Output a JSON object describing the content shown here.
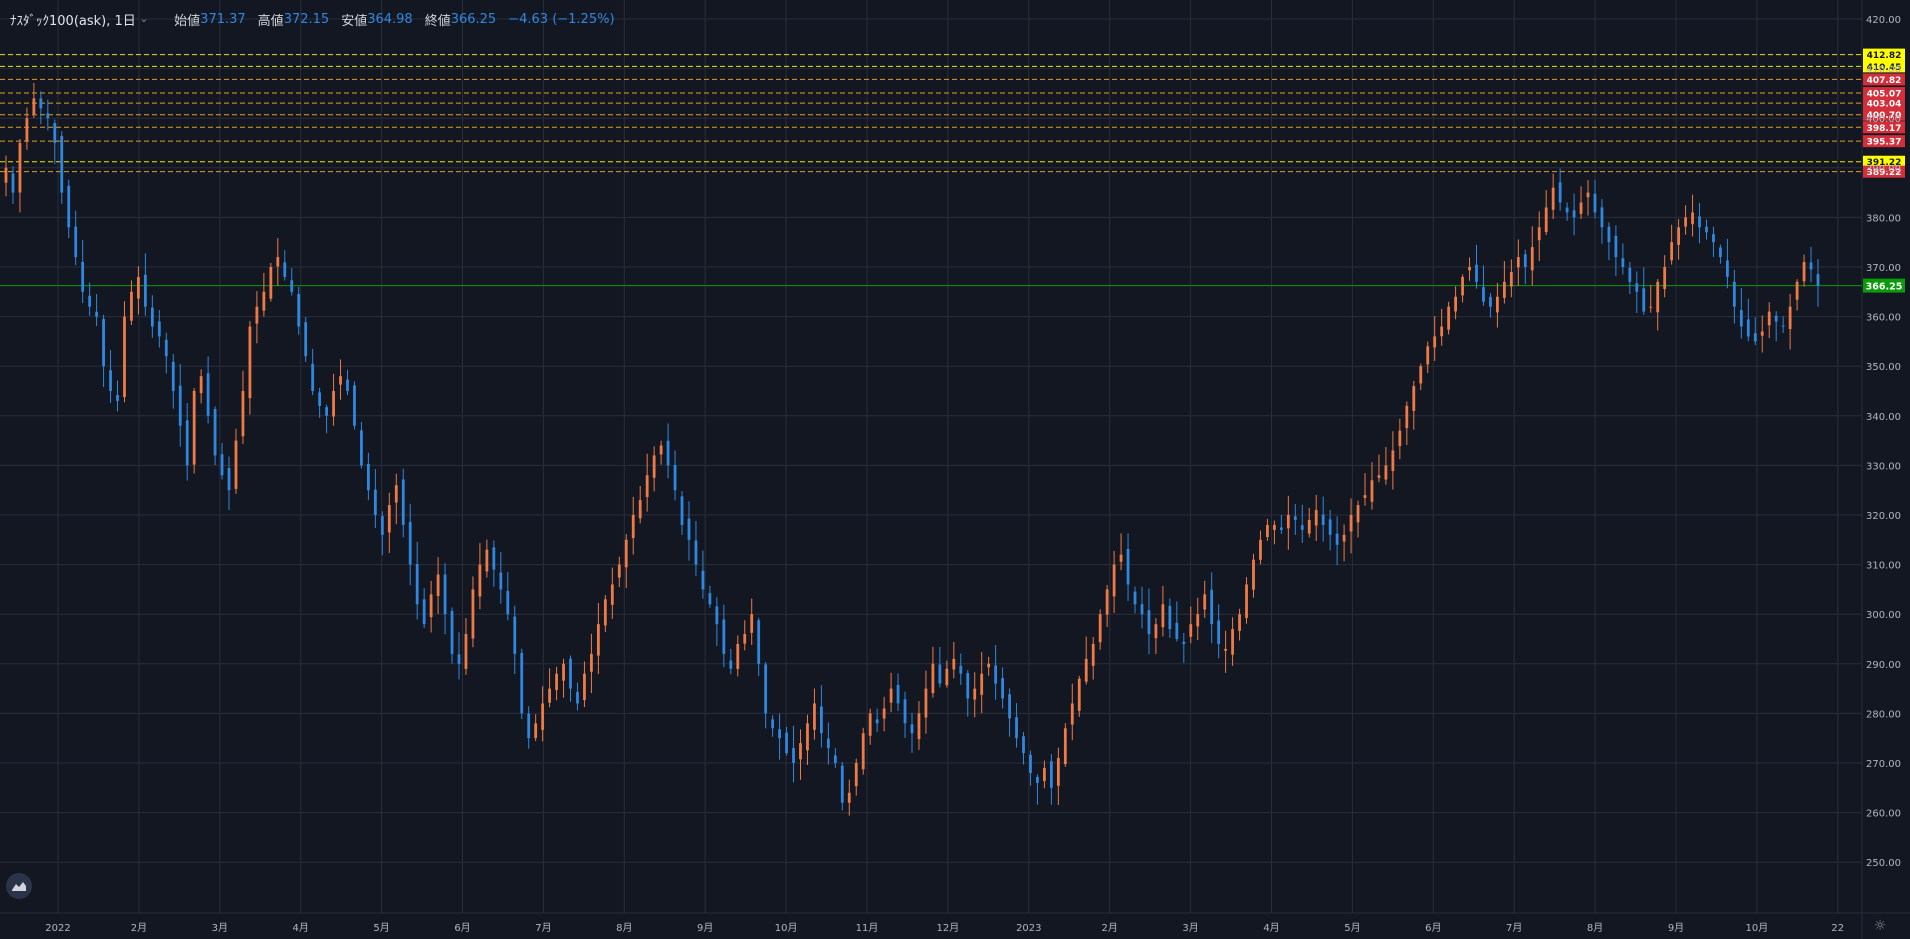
{
  "header": {
    "symbol": "ﾅｽﾀﾞｯｸ100(ask), 1日",
    "open_label": "始値",
    "open": "371.37",
    "high_label": "高値",
    "high": "372.15",
    "low_label": "安値",
    "low": "364.98",
    "close_label": "終値",
    "close": "366.25",
    "change": "−4.63 (−1.25%)"
  },
  "icons": {
    "logo": "tradingview-logo-icon",
    "settings": "gear-icon",
    "dropdown": "chevron-down-icon"
  },
  "colors": {
    "background": "#131722",
    "up": "#ef7a45",
    "down": "#2f87e0",
    "grid": "#2a2e39",
    "last_price": "#0a9a0a"
  },
  "chart_data": {
    "type": "candlestick",
    "title": "ﾅｽﾀﾞｯｸ100(ask), 1日",
    "ylim": [
      243,
      422
    ],
    "y_ticks": [
      "420.00",
      "410.00",
      "400.00",
      "390.00",
      "380.00",
      "370.00",
      "360.00",
      "350.00",
      "340.00",
      "330.00",
      "320.00",
      "310.00",
      "300.00",
      "290.00",
      "280.00",
      "270.00",
      "260.00",
      "250.00"
    ],
    "x_ticks": [
      "2022",
      "2月",
      "3月",
      "4月",
      "5月",
      "6月",
      "7月",
      "8月",
      "9月",
      "10月",
      "11月",
      "12月",
      "2023",
      "2月",
      "3月",
      "4月",
      "5月",
      "6月",
      "7月",
      "8月",
      "9月",
      "10月",
      "22"
    ],
    "last_price": "366.25",
    "horizontal_levels": [
      {
        "value": 412.82,
        "label": "412.82",
        "style": "yellow"
      },
      {
        "value": 410.45,
        "label": "410.45",
        "style": "yellow"
      },
      {
        "value": 407.82,
        "label": "407.82",
        "style": "red"
      },
      {
        "value": 405.07,
        "label": "405.07",
        "style": "red"
      },
      {
        "value": 403.04,
        "label": "403.04",
        "style": "red"
      },
      {
        "value": 400.7,
        "label": "400.70",
        "style": "red"
      },
      {
        "value": 398.17,
        "label": "398.17",
        "style": "red"
      },
      {
        "value": 395.37,
        "label": "395.37",
        "style": "red"
      },
      {
        "value": 391.22,
        "label": "391.22",
        "style": "yellow"
      },
      {
        "value": 389.22,
        "label": "389.22",
        "style": "red"
      }
    ],
    "closes": [
      390,
      385,
      395,
      400,
      404,
      402,
      400,
      395,
      385,
      378,
      372,
      365,
      362,
      360,
      350,
      345,
      343,
      360,
      365,
      368,
      362,
      358,
      356,
      352,
      345,
      338,
      330,
      345,
      348,
      340,
      332,
      328,
      325,
      335,
      345,
      358,
      362,
      365,
      370,
      372,
      368,
      365,
      358,
      352,
      345,
      342,
      340,
      345,
      348,
      345,
      338,
      330,
      325,
      320,
      316,
      322,
      326,
      318,
      310,
      302,
      298,
      304,
      308,
      300,
      292,
      290,
      296,
      305,
      310,
      313,
      309,
      305,
      300,
      292,
      280,
      275,
      278,
      282,
      285,
      288,
      290,
      285,
      282,
      288,
      292,
      298,
      303,
      306,
      310,
      315,
      320,
      323,
      328,
      332,
      334,
      330,
      325,
      318,
      315,
      310,
      305,
      302,
      298,
      292,
      289,
      294,
      296,
      300,
      290,
      280,
      277,
      275,
      272,
      270,
      274,
      278,
      282,
      276,
      273,
      270,
      262,
      264,
      270,
      276,
      280,
      278,
      281,
      285,
      282,
      278,
      276,
      280,
      285,
      290,
      286,
      289,
      291,
      288,
      283,
      285,
      288,
      290,
      286,
      283,
      279,
      275,
      272,
      268,
      266,
      269,
      265,
      271,
      277,
      282,
      287,
      291,
      294,
      300,
      305,
      310,
      312,
      306,
      302,
      300,
      296,
      298,
      302,
      297,
      295,
      294,
      298,
      300,
      304,
      298,
      294,
      293,
      297,
      300,
      306,
      311,
      315,
      318,
      318,
      317,
      320,
      319,
      317,
      319,
      321,
      318,
      316,
      314,
      316,
      320,
      322,
      324,
      327,
      328,
      330,
      333,
      337,
      342,
      346,
      350,
      354,
      356,
      358,
      362,
      364,
      368,
      370,
      367,
      363,
      362,
      364,
      367,
      369,
      372,
      370,
      374,
      378,
      382,
      386,
      383,
      381,
      380,
      383,
      385,
      381,
      378,
      375,
      372,
      370,
      367,
      365,
      361,
      362,
      367,
      370,
      375,
      378,
      380,
      381,
      378,
      377,
      375,
      372,
      368,
      362,
      358,
      356,
      355,
      357,
      361,
      359,
      358,
      362,
      367,
      371,
      369.5,
      366.25
    ]
  }
}
